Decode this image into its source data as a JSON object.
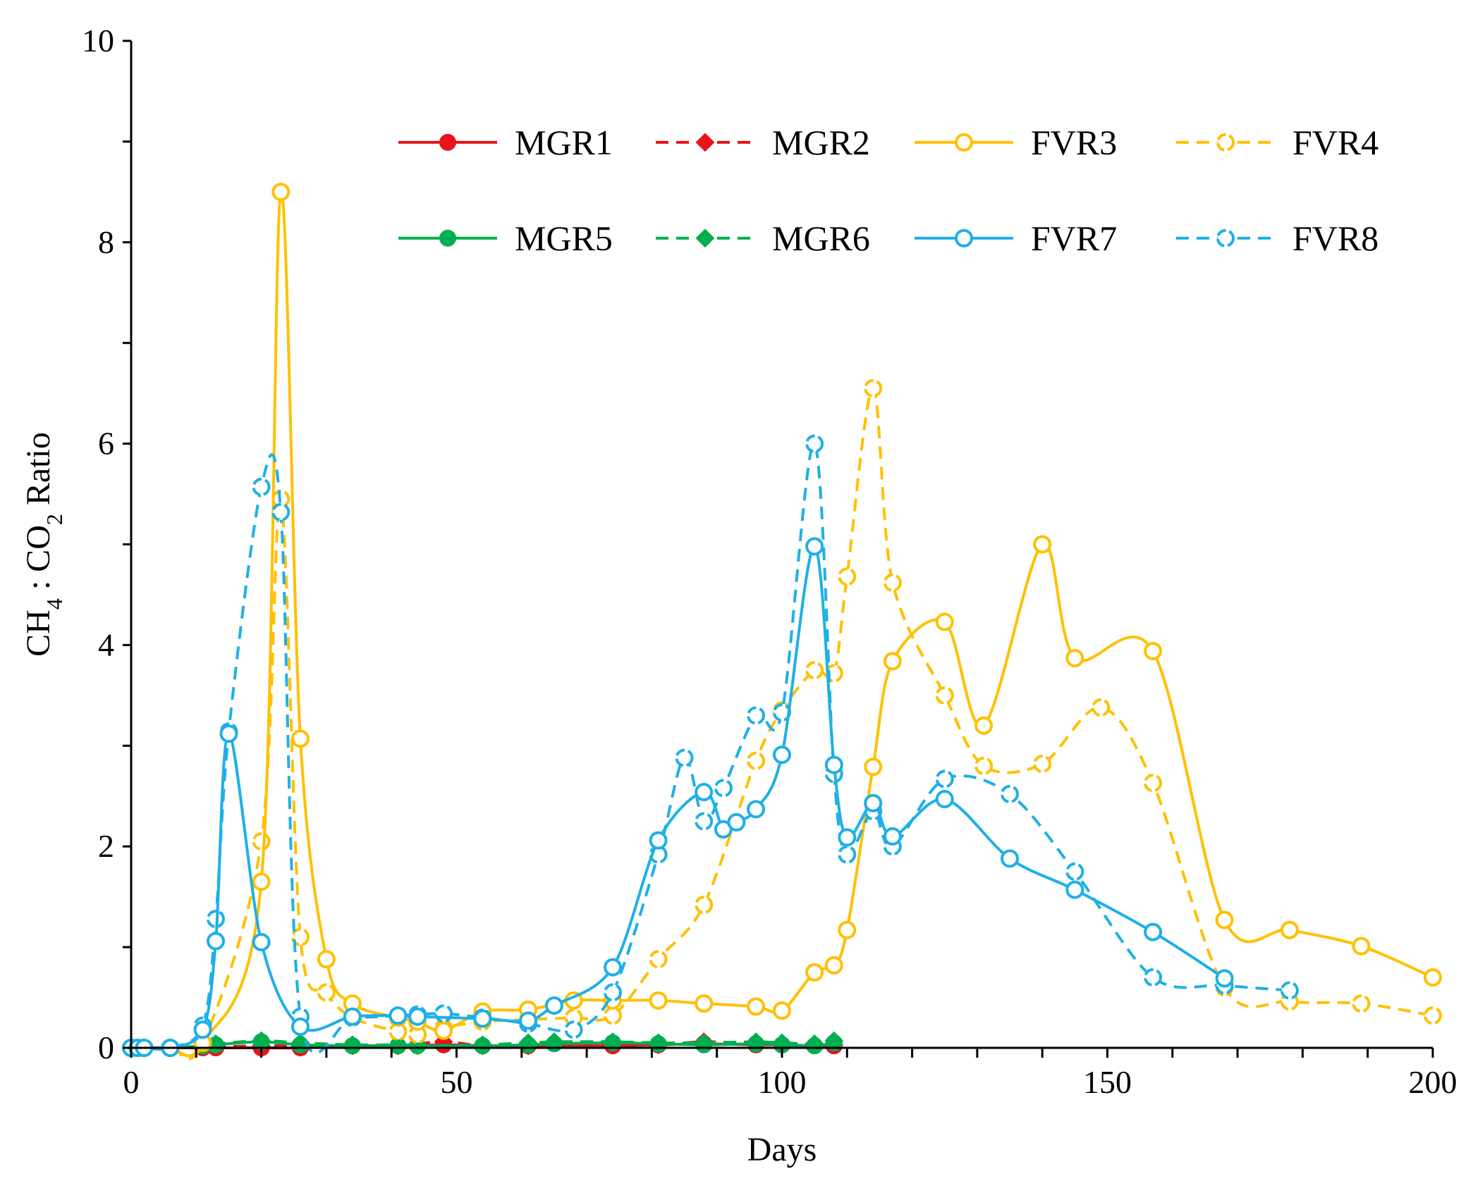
{
  "chart_data": {
    "type": "line",
    "title": "",
    "xlabel": "Days",
    "ylabel": {
      "parts": [
        {
          "text": "CH",
          "sub": false
        },
        {
          "text": "4",
          "sub": true
        },
        {
          "text": " : CO",
          "sub": false
        },
        {
          "text": "2",
          "sub": true
        },
        {
          "text": " Ratio",
          "sub": false
        }
      ]
    },
    "xlim": [
      0,
      200
    ],
    "ylim": [
      0,
      10
    ],
    "x_ticks": [
      0,
      50,
      100,
      150,
      200
    ],
    "x_tick_labels": [
      "0",
      "50",
      "100",
      "150",
      "200"
    ],
    "x_minor_step": 10,
    "y_ticks": [
      0,
      2,
      4,
      6,
      8,
      10
    ],
    "y_tick_labels": [
      "0",
      "2",
      "4",
      "6",
      "8",
      "10"
    ],
    "y_minor_step": 1,
    "grid": false,
    "legend_position": "top-right",
    "series": [
      {
        "name": "MGR1",
        "color": "#e8141a",
        "dash": false,
        "marker": "filled-circle",
        "x": [
          0,
          1,
          2,
          6,
          11,
          13,
          20,
          26,
          34,
          41,
          48,
          54,
          61,
          74,
          81,
          88,
          96,
          100,
          105,
          108
        ],
        "y": [
          0,
          0,
          0,
          0,
          0,
          0,
          0,
          0,
          0.02,
          0.02,
          0.03,
          0.02,
          0.02,
          0.02,
          0.03,
          0.04,
          0.03,
          0.03,
          0.02,
          0.02
        ]
      },
      {
        "name": "MGR2",
        "color": "#e8141a",
        "dash": true,
        "marker": "filled-diamond",
        "x": [
          0,
          2,
          6,
          11,
          13,
          20,
          26,
          34,
          41,
          48,
          54,
          61,
          74,
          81,
          88,
          96,
          100,
          105,
          108
        ],
        "y": [
          0,
          0,
          0,
          0.01,
          0.01,
          0.02,
          0.02,
          0.02,
          0.02,
          0.06,
          0.02,
          0.02,
          0.03,
          0.03,
          0.06,
          0.04,
          0.03,
          0.03,
          0.03
        ]
      },
      {
        "name": "FVR3",
        "color": "#ffc000",
        "dash": false,
        "marker": "open-circle",
        "x": [
          0,
          2,
          6,
          11,
          20,
          23,
          26,
          30,
          34,
          41,
          44,
          48,
          54,
          61,
          68,
          74,
          81,
          88,
          96,
          100,
          105,
          108,
          110,
          114,
          117,
          125,
          131,
          140,
          145,
          157,
          168,
          178,
          189,
          200
        ],
        "y": [
          0,
          0,
          0,
          0.05,
          1.65,
          8.5,
          3.07,
          0.88,
          0.44,
          0.3,
          0.26,
          0.17,
          0.36,
          0.38,
          0.47,
          0.47,
          0.47,
          0.44,
          0.41,
          0.37,
          0.75,
          0.82,
          1.17,
          2.79,
          3.84,
          4.23,
          3.2,
          5.0,
          3.87,
          3.94,
          1.27,
          1.17,
          1.01,
          0.7
        ]
      },
      {
        "name": "FVR4",
        "color": "#ffc000",
        "dash": true,
        "marker": "open-broken-circle",
        "x": [
          0,
          2,
          6,
          11,
          20,
          23,
          26,
          30,
          34,
          41,
          44,
          48,
          54,
          61,
          68,
          74,
          81,
          88,
          96,
          100,
          105,
          108,
          110,
          114,
          117,
          125,
          131,
          140,
          149,
          157,
          168,
          178,
          189,
          200
        ],
        "y": [
          0,
          0,
          0,
          0.05,
          2.05,
          5.45,
          1.1,
          0.55,
          0.3,
          0.16,
          0.13,
          0.2,
          0.26,
          0.28,
          0.3,
          0.32,
          0.88,
          1.42,
          2.85,
          3.35,
          3.75,
          3.72,
          4.68,
          6.55,
          4.62,
          3.5,
          2.8,
          2.82,
          3.38,
          2.63,
          0.6,
          0.46,
          0.44,
          0.32
        ]
      },
      {
        "name": "MGR5",
        "color": "#00b050",
        "dash": false,
        "marker": "filled-circle",
        "x": [
          0,
          1,
          2,
          6,
          11,
          13,
          20,
          26,
          34,
          41,
          44,
          54,
          61,
          65,
          74,
          81,
          88,
          96,
          100,
          105,
          108
        ],
        "y": [
          0,
          0,
          0,
          0,
          0.02,
          0.03,
          0.06,
          0.03,
          0.02,
          0.02,
          0.02,
          0.02,
          0.03,
          0.04,
          0.05,
          0.04,
          0.03,
          0.04,
          0.03,
          0.02,
          0.05
        ]
      },
      {
        "name": "MGR6",
        "color": "#00b050",
        "dash": true,
        "marker": "filled-diamond",
        "x": [
          0,
          2,
          6,
          11,
          13,
          20,
          26,
          34,
          41,
          44,
          54,
          61,
          65,
          74,
          81,
          88,
          96,
          100,
          105,
          108
        ],
        "y": [
          0,
          0,
          0,
          0.02,
          0.04,
          0.07,
          0.05,
          0.03,
          0.03,
          0.02,
          0.03,
          0.05,
          0.06,
          0.06,
          0.05,
          0.05,
          0.06,
          0.05,
          0.04,
          0.07
        ]
      },
      {
        "name": "FVR7",
        "color": "#1eb0e6",
        "dash": false,
        "marker": "open-circle",
        "x": [
          0,
          1,
          2,
          6,
          11,
          13,
          15,
          20,
          26,
          34,
          41,
          44,
          54,
          61,
          65,
          74,
          81,
          88,
          91,
          93,
          96,
          100,
          105,
          108,
          110,
          114,
          117,
          125,
          135,
          145,
          157,
          168
        ],
        "y": [
          0,
          0,
          0,
          0,
          0.18,
          1.06,
          3.12,
          1.05,
          0.21,
          0.31,
          0.32,
          0.31,
          0.29,
          0.27,
          0.42,
          0.8,
          2.06,
          2.54,
          2.17,
          2.24,
          2.37,
          2.91,
          4.98,
          2.81,
          2.09,
          2.43,
          2.1,
          2.47,
          1.88,
          1.57,
          1.15,
          0.69
        ]
      },
      {
        "name": "FVR8",
        "color": "#1eb0e6",
        "dash": true,
        "marker": "open-broken-circle",
        "x": [
          0,
          1,
          2,
          6,
          11,
          13,
          15,
          20,
          23,
          26,
          34,
          41,
          44,
          48,
          54,
          61,
          68,
          74,
          81,
          85,
          88,
          91,
          96,
          100,
          105,
          108,
          110,
          114,
          117,
          125,
          135,
          145,
          157,
          168,
          178
        ],
        "y": [
          0,
          0,
          0,
          0,
          0.22,
          1.28,
          3.14,
          5.57,
          5.32,
          0.31,
          0.3,
          0.32,
          0.33,
          0.34,
          0.3,
          0.24,
          0.18,
          0.55,
          1.92,
          2.88,
          2.25,
          2.58,
          3.3,
          3.33,
          6.0,
          2.72,
          1.92,
          2.35,
          2.0,
          2.67,
          2.52,
          1.75,
          0.7,
          0.62,
          0.57
        ]
      }
    ]
  }
}
